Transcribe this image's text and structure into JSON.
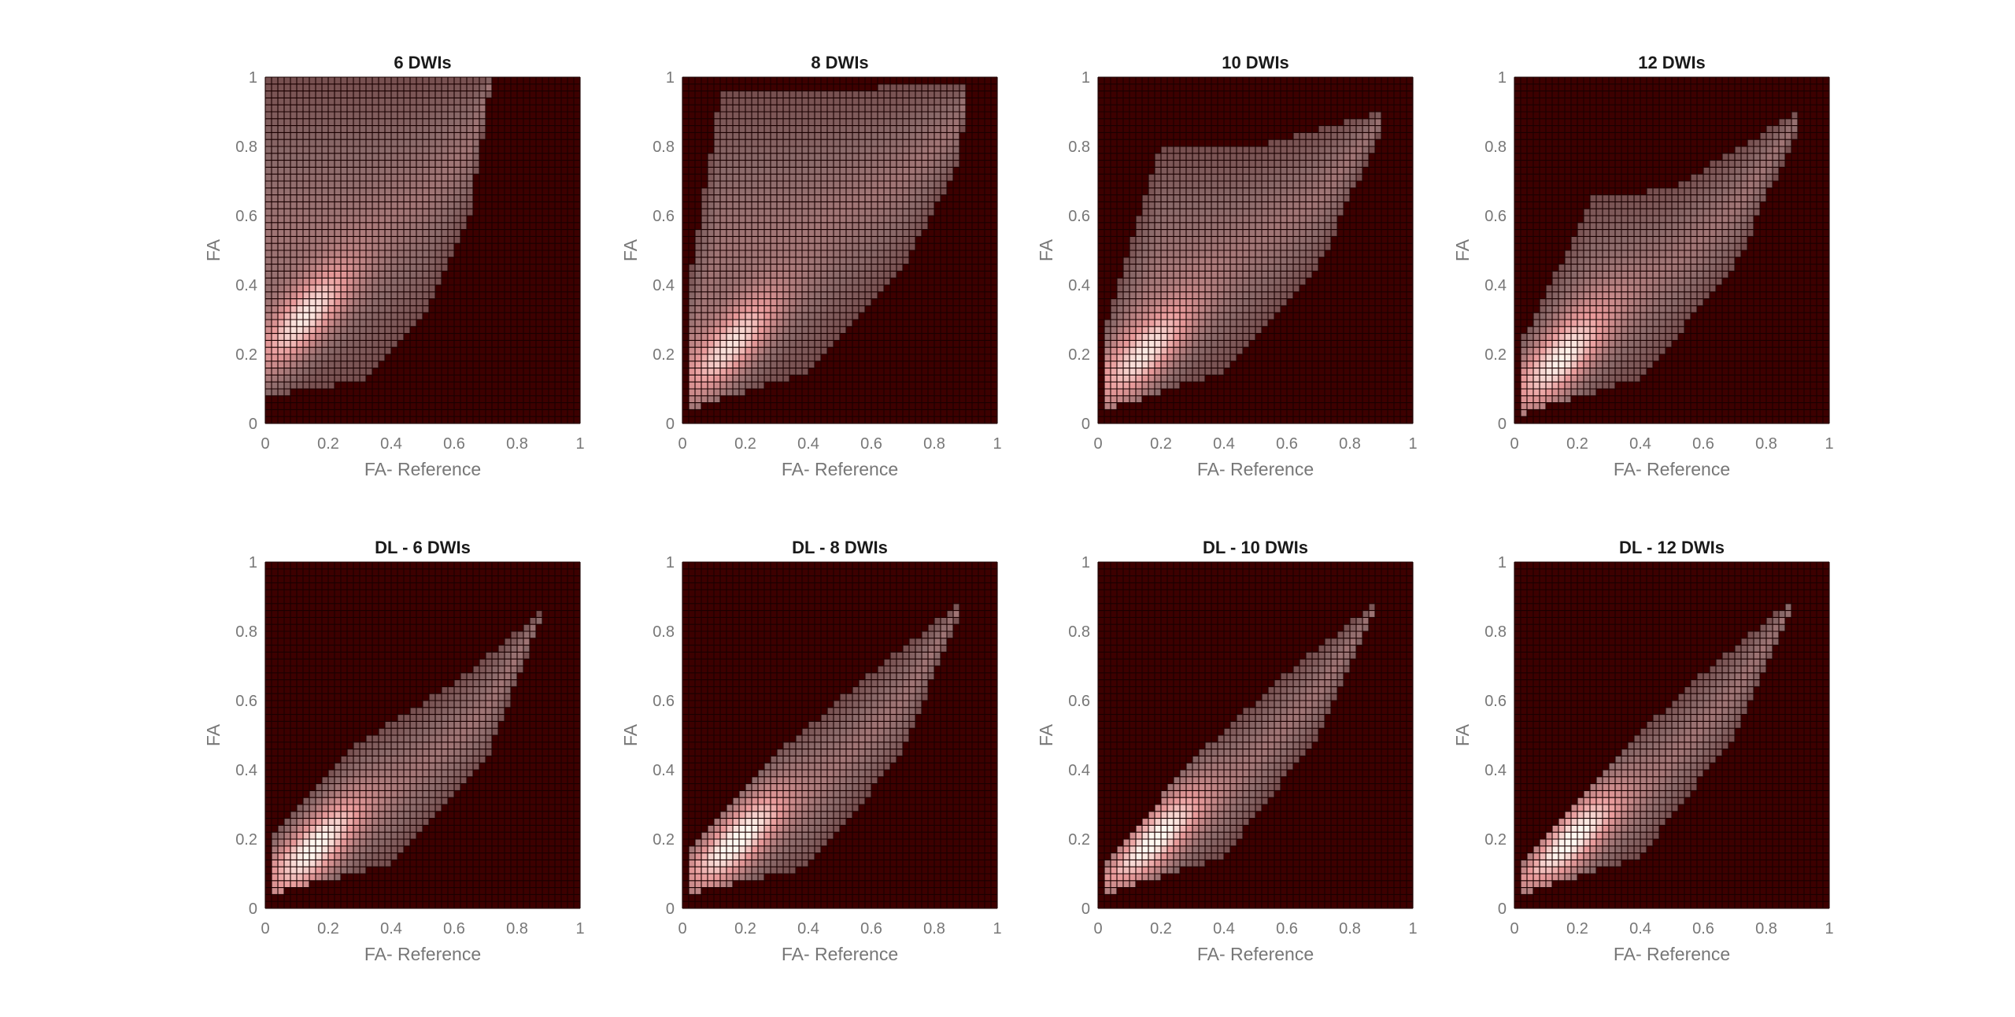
{
  "chart_data": [
    {
      "type": "heatmap",
      "title": "6 DWIs",
      "xlabel": "FA- Reference",
      "ylabel": "FA",
      "xlim": [
        0,
        1
      ],
      "ylim": [
        0,
        1
      ],
      "xticks": [
        "0",
        "0.2",
        "0.4",
        "0.6",
        "0.8",
        "1"
      ],
      "yticks": [
        "0",
        "0.2",
        "0.4",
        "0.6",
        "0.8",
        "1"
      ],
      "peak": [
        0.12,
        0.3
      ],
      "lower_bound": [
        [
          0.0,
          0.08
        ],
        [
          0.3,
          0.12
        ],
        [
          0.5,
          0.3
        ],
        [
          0.65,
          0.6
        ],
        [
          0.72,
          1.0
        ]
      ],
      "upper_bound": [
        [
          0.0,
          1.0
        ],
        [
          0.7,
          1.0
        ]
      ],
      "grid": true
    },
    {
      "type": "heatmap",
      "title": "8 DWIs",
      "xlabel": "FA- Reference",
      "ylabel": "FA",
      "xlim": [
        0,
        1
      ],
      "ylim": [
        0,
        1
      ],
      "xticks": [
        "0",
        "0.2",
        "0.4",
        "0.6",
        "0.8",
        "1"
      ],
      "yticks": [
        "0",
        "0.2",
        "0.4",
        "0.6",
        "0.8",
        "1"
      ],
      "peak": [
        0.15,
        0.22
      ],
      "lower_bound": [
        [
          0.02,
          0.04
        ],
        [
          0.4,
          0.15
        ],
        [
          0.7,
          0.45
        ],
        [
          0.88,
          0.75
        ],
        [
          0.9,
          0.95
        ]
      ],
      "upper_bound": [
        [
          0.02,
          0.4
        ],
        [
          0.12,
          0.95
        ],
        [
          0.88,
          0.98
        ]
      ],
      "grid": true
    },
    {
      "type": "heatmap",
      "title": "10 DWIs",
      "xlabel": "FA- Reference",
      "ylabel": "FA",
      "xlim": [
        0,
        1
      ],
      "ylim": [
        0,
        1
      ],
      "xticks": [
        "0",
        "0.2",
        "0.4",
        "0.6",
        "0.8",
        "1"
      ],
      "yticks": [
        "0",
        "0.2",
        "0.4",
        "0.6",
        "0.8",
        "1"
      ],
      "peak": [
        0.15,
        0.2
      ],
      "lower_bound": [
        [
          0.03,
          0.04
        ],
        [
          0.4,
          0.15
        ],
        [
          0.7,
          0.45
        ],
        [
          0.9,
          0.85
        ]
      ],
      "upper_bound": [
        [
          0.03,
          0.3
        ],
        [
          0.2,
          0.8
        ],
        [
          0.5,
          0.8
        ],
        [
          0.9,
          0.9
        ]
      ],
      "grid": true
    },
    {
      "type": "heatmap",
      "title": "12 DWIs",
      "xlabel": "FA- Reference",
      "ylabel": "FA",
      "xlim": [
        0,
        1
      ],
      "ylim": [
        0,
        1
      ],
      "xticks": [
        "0",
        "0.2",
        "0.4",
        "0.6",
        "0.8",
        "1"
      ],
      "yticks": [
        "0",
        "0.2",
        "0.4",
        "0.6",
        "0.8",
        "1"
      ],
      "peak": [
        0.15,
        0.18
      ],
      "lower_bound": [
        [
          0.03,
          0.03
        ],
        [
          0.4,
          0.13
        ],
        [
          0.7,
          0.45
        ],
        [
          0.9,
          0.85
        ]
      ],
      "upper_bound": [
        [
          0.03,
          0.25
        ],
        [
          0.25,
          0.65
        ],
        [
          0.5,
          0.68
        ],
        [
          0.9,
          0.9
        ]
      ],
      "grid": true
    },
    {
      "type": "heatmap",
      "title": "DL - 6 DWIs",
      "xlabel": "FA- Reference",
      "ylabel": "FA",
      "xlim": [
        0,
        1
      ],
      "ylim": [
        0,
        1
      ],
      "xticks": [
        "0",
        "0.2",
        "0.4",
        "0.6",
        "0.8",
        "1"
      ],
      "yticks": [
        "0",
        "0.2",
        "0.4",
        "0.6",
        "0.8",
        "1"
      ],
      "peak": [
        0.15,
        0.16
      ],
      "lower_bound": [
        [
          0.02,
          0.04
        ],
        [
          0.4,
          0.13
        ],
        [
          0.7,
          0.42
        ],
        [
          0.87,
          0.82
        ]
      ],
      "upper_bound": [
        [
          0.02,
          0.2
        ],
        [
          0.3,
          0.48
        ],
        [
          0.6,
          0.65
        ],
        [
          0.87,
          0.85
        ]
      ],
      "grid": true
    },
    {
      "type": "heatmap",
      "title": "DL - 8 DWIs",
      "xlabel": "FA- Reference",
      "ylabel": "FA",
      "xlim": [
        0,
        1
      ],
      "ylim": [
        0,
        1
      ],
      "xticks": [
        "0",
        "0.2",
        "0.4",
        "0.6",
        "0.8",
        "1"
      ],
      "yticks": [
        "0",
        "0.2",
        "0.4",
        "0.6",
        "0.8",
        "1"
      ],
      "peak": [
        0.17,
        0.19
      ],
      "lower_bound": [
        [
          0.02,
          0.04
        ],
        [
          0.4,
          0.12
        ],
        [
          0.7,
          0.45
        ],
        [
          0.88,
          0.85
        ]
      ],
      "upper_bound": [
        [
          0.02,
          0.18
        ],
        [
          0.3,
          0.45
        ],
        [
          0.6,
          0.68
        ],
        [
          0.88,
          0.88
        ]
      ],
      "grid": true
    },
    {
      "type": "heatmap",
      "title": "DL - 10 DWIs",
      "xlabel": "FA- Reference",
      "ylabel": "FA",
      "xlim": [
        0,
        1
      ],
      "ylim": [
        0,
        1
      ],
      "xticks": [
        "0",
        "0.2",
        "0.4",
        "0.6",
        "0.8",
        "1"
      ],
      "yticks": [
        "0",
        "0.2",
        "0.4",
        "0.6",
        "0.8",
        "1"
      ],
      "peak": [
        0.18,
        0.2
      ],
      "lower_bound": [
        [
          0.02,
          0.04
        ],
        [
          0.4,
          0.15
        ],
        [
          0.7,
          0.5
        ],
        [
          0.88,
          0.85
        ]
      ],
      "upper_bound": [
        [
          0.02,
          0.12
        ],
        [
          0.3,
          0.43
        ],
        [
          0.6,
          0.68
        ],
        [
          0.88,
          0.88
        ]
      ],
      "grid": true
    },
    {
      "type": "heatmap",
      "title": "DL - 12 DWIs",
      "xlabel": "FA- Reference",
      "ylabel": "FA",
      "xlim": [
        0,
        1
      ],
      "ylim": [
        0,
        1
      ],
      "xticks": [
        "0",
        "0.2",
        "0.4",
        "0.6",
        "0.8",
        "1"
      ],
      "yticks": [
        "0",
        "0.2",
        "0.4",
        "0.6",
        "0.8",
        "1"
      ],
      "peak": [
        0.18,
        0.2
      ],
      "lower_bound": [
        [
          0.02,
          0.04
        ],
        [
          0.4,
          0.15
        ],
        [
          0.7,
          0.5
        ],
        [
          0.88,
          0.85
        ]
      ],
      "upper_bound": [
        [
          0.02,
          0.12
        ],
        [
          0.3,
          0.42
        ],
        [
          0.6,
          0.68
        ],
        [
          0.88,
          0.89
        ]
      ],
      "grid": true
    }
  ],
  "colors": {
    "background": "#3d0000",
    "grid": "#1a0000",
    "low": "#3d0000",
    "mid": "#8a6a6a",
    "high": "#e89a9a",
    "peak": "#fff8f0"
  }
}
